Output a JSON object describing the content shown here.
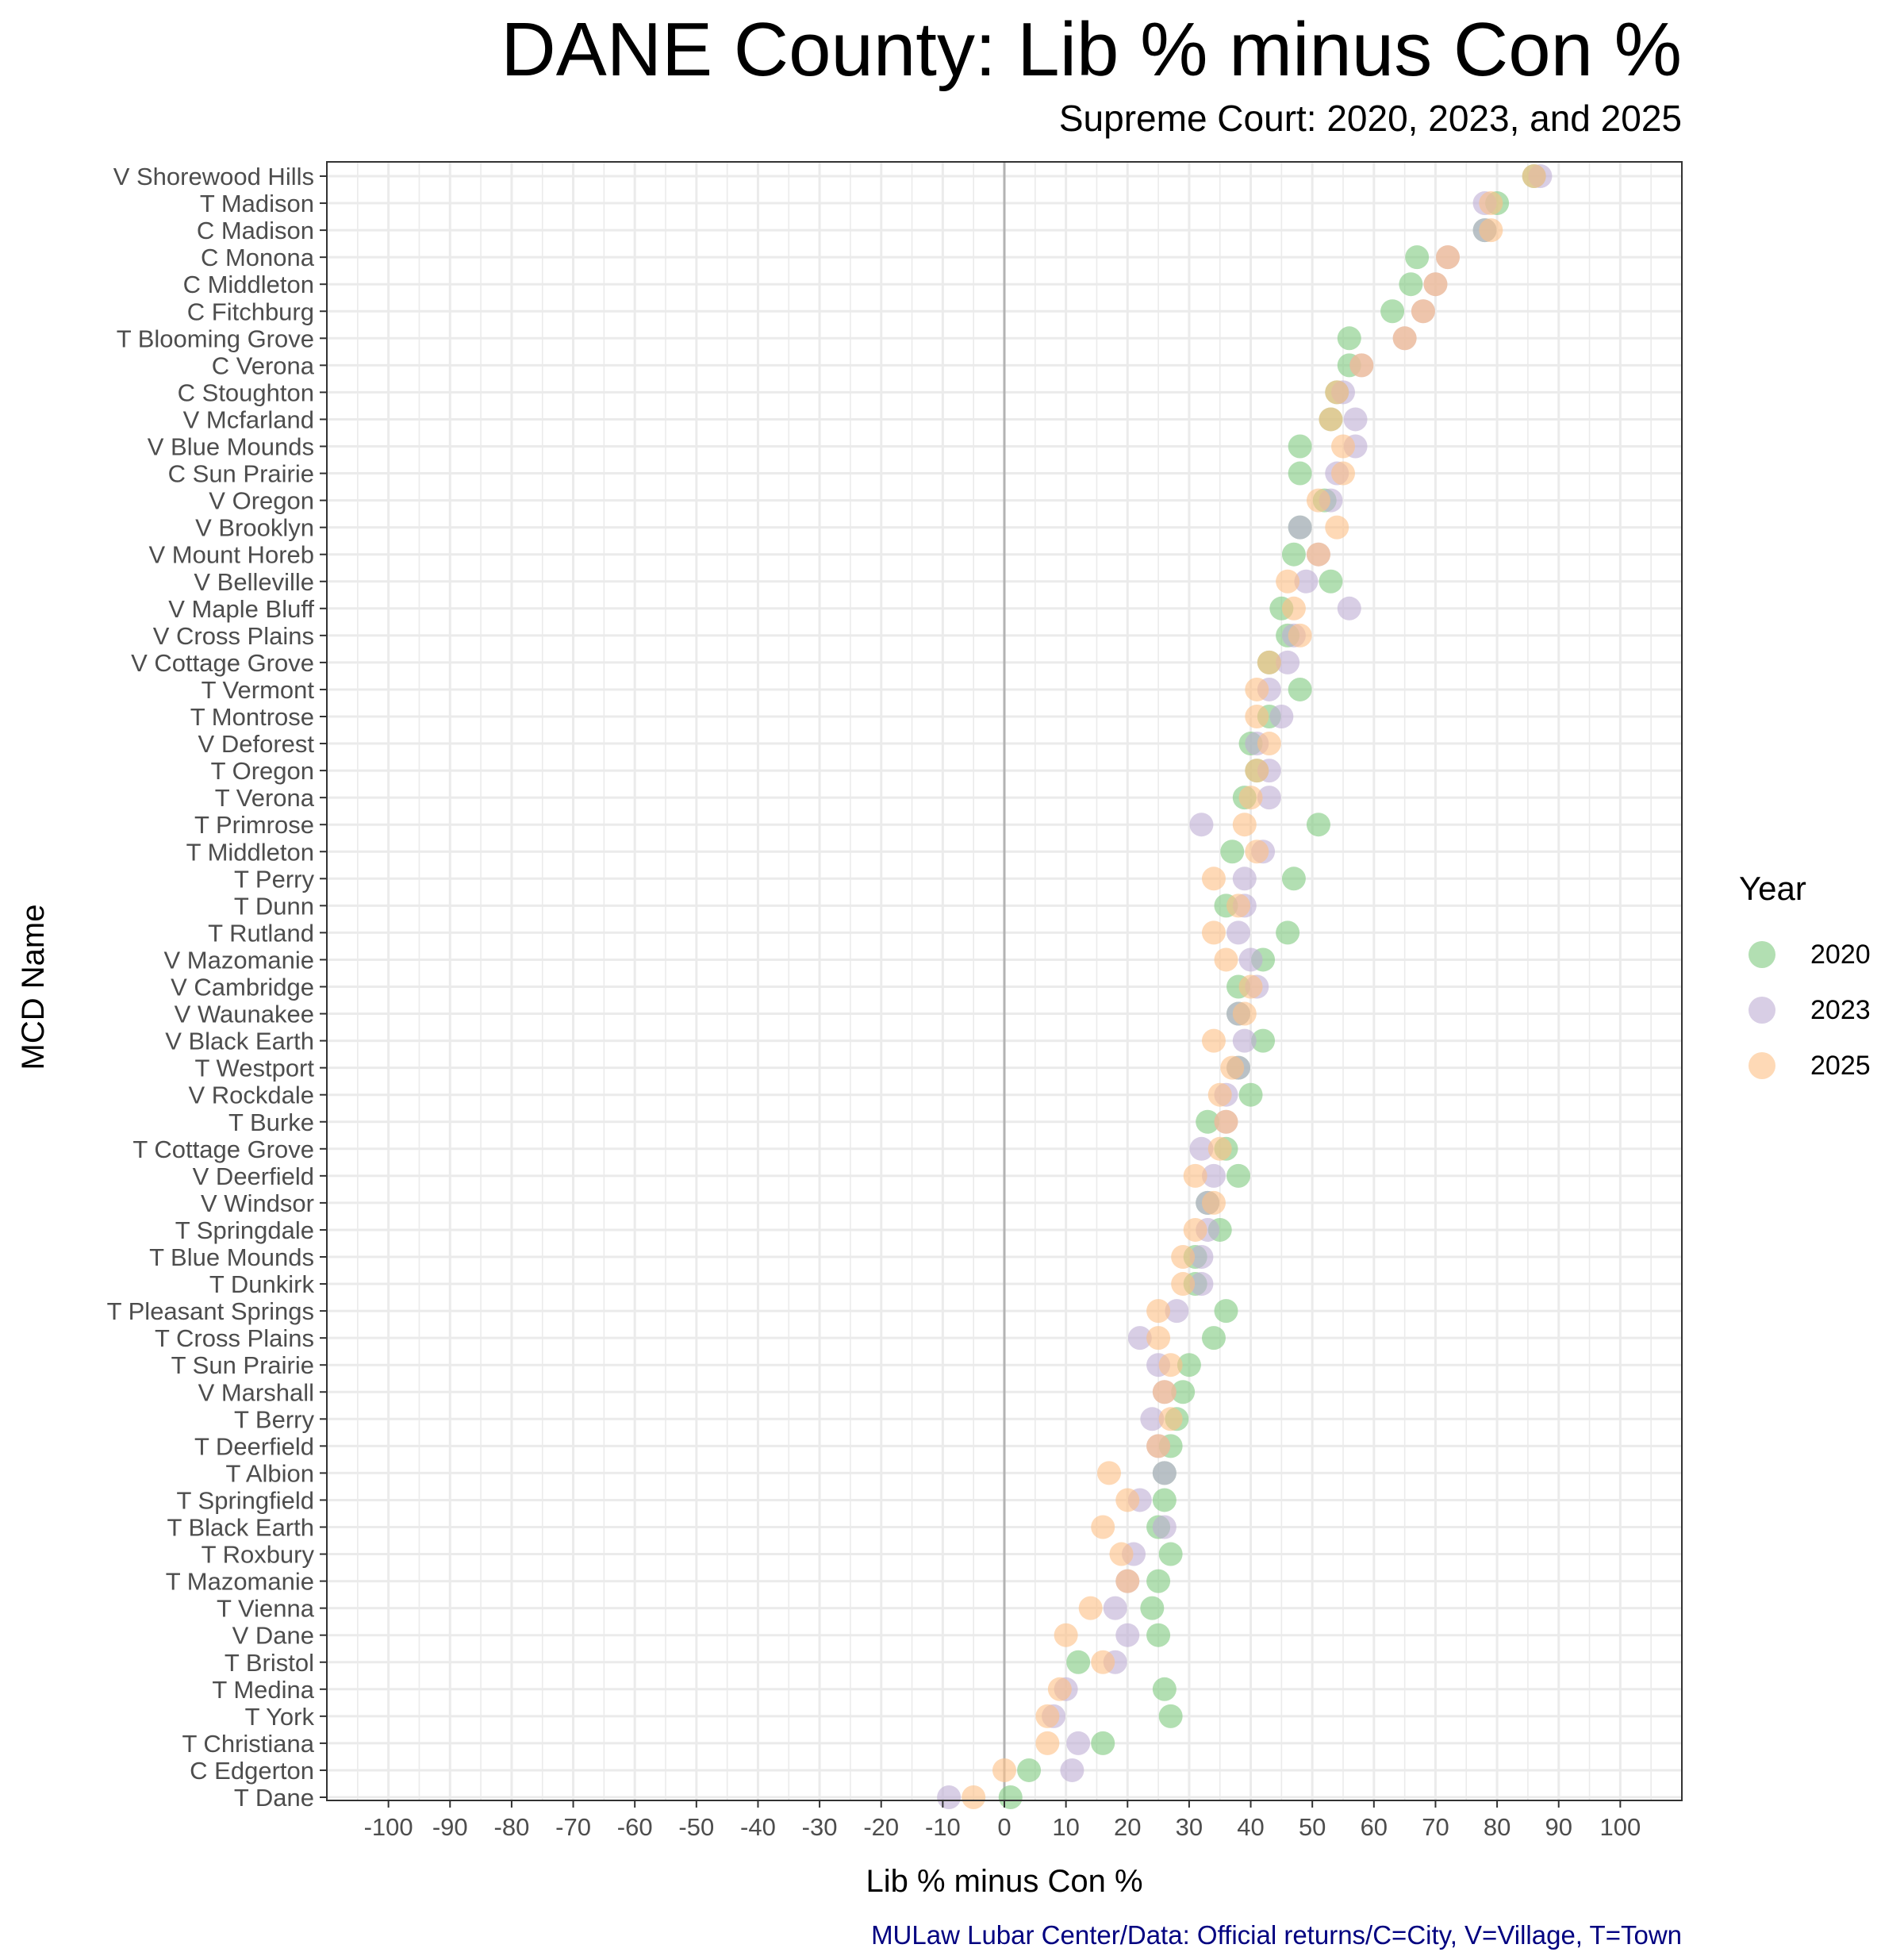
{
  "title": "DANE County: Lib % minus Con %",
  "subtitle": "Supreme Court: 2020, 2023, and 2025",
  "caption": "MULaw Lubar Center/Data: Official returns/C=City, V=Village, T=Town",
  "legend": {
    "title": "Year",
    "items": [
      {
        "label": "2020",
        "color": "#7fc97f"
      },
      {
        "label": "2023",
        "color": "#beaed4"
      },
      {
        "label": "2025",
        "color": "#fdc086"
      }
    ]
  },
  "chart_data": {
    "type": "scatter",
    "title": "DANE County: Lib % minus Con %",
    "subtitle": "Supreme Court: 2020, 2023, and 2025",
    "xlabel": "Lib % minus Con %",
    "ylabel": "MCD Name",
    "xlim": [
      -110,
      110
    ],
    "xticks": [
      "-100",
      "-90",
      "-80",
      "-70",
      "-60",
      "-50",
      "-40",
      "-30",
      "-20",
      "-10",
      "0",
      "10",
      "20",
      "30",
      "40",
      "50",
      "60",
      "70",
      "80",
      "90",
      "100"
    ],
    "grid": true,
    "legend_placement": "right",
    "categories": [
      "V Shorewood Hills",
      "T Madison",
      "C Madison",
      "C Monona",
      "C Middleton",
      "C Fitchburg",
      "T Blooming Grove",
      "C Verona",
      "C Stoughton",
      "V Mcfarland",
      "V Blue Mounds",
      "C Sun Prairie",
      "V Oregon",
      "V Brooklyn",
      "V Mount Horeb",
      "V Belleville",
      "V Maple Bluff",
      "V Cross Plains",
      "V Cottage Grove",
      "T Vermont",
      "T Montrose",
      "V Deforest",
      "T Oregon",
      "T Verona",
      "T Primrose",
      "T Middleton",
      "T Perry",
      "T Dunn",
      "T Rutland",
      "V Mazomanie",
      "V Cambridge",
      "V Waunakee",
      "V Black Earth",
      "T Westport",
      "V Rockdale",
      "T Burke",
      "T Cottage Grove",
      "V Deerfield",
      "V Windsor",
      "T Springdale",
      "T Blue Mounds",
      "T Dunkirk",
      "T Pleasant Springs",
      "T Cross Plains",
      "T Sun Prairie",
      "V Marshall",
      "T Berry",
      "T Deerfield",
      "T Albion",
      "T Springfield",
      "T Black Earth",
      "T Roxbury",
      "T Mazomanie",
      "T Vienna",
      "V Dane",
      "T Bristol",
      "T Medina",
      "T York",
      "T Christiana",
      "C Edgerton",
      "T Dane"
    ],
    "series": [
      {
        "name": "2020",
        "values": [
          86,
          80,
          78,
          67,
          66,
          63,
          56,
          56,
          54,
          53,
          48,
          48,
          52,
          48,
          47,
          53,
          45,
          46,
          43,
          48,
          43,
          40,
          41,
          39,
          51,
          37,
          47,
          36,
          46,
          42,
          38,
          38,
          42,
          38,
          40,
          33,
          36,
          38,
          33,
          35,
          31,
          31,
          36,
          34,
          30,
          29,
          28,
          27,
          26,
          26,
          25,
          27,
          25,
          24,
          25,
          12,
          26,
          27,
          16,
          4,
          1
        ]
      },
      {
        "name": "2023",
        "values": [
          87,
          78,
          78,
          72,
          70,
          68,
          65,
          58,
          55,
          57,
          57,
          54,
          53,
          48,
          51,
          49,
          56,
          47,
          46,
          43,
          45,
          41,
          43,
          43,
          32,
          42,
          39,
          39,
          38,
          40,
          41,
          38,
          39,
          38,
          36,
          36,
          32,
          34,
          33,
          33,
          32,
          32,
          28,
          22,
          25,
          26,
          24,
          25,
          26,
          22,
          26,
          21,
          20,
          18,
          20,
          18,
          10,
          8,
          12,
          11,
          -9
        ]
      },
      {
        "name": "2025",
        "values": [
          86,
          79,
          79,
          72,
          70,
          68,
          65,
          58,
          54,
          53,
          55,
          55,
          51,
          54,
          51,
          46,
          47,
          48,
          43,
          41,
          41,
          43,
          41,
          40,
          39,
          41,
          34,
          38,
          34,
          36,
          40,
          39,
          34,
          37,
          35,
          36,
          35,
          31,
          34,
          31,
          29,
          29,
          25,
          25,
          27,
          26,
          27,
          25,
          17,
          20,
          16,
          19,
          20,
          14,
          10,
          16,
          9,
          7,
          7,
          0,
          -5
        ]
      }
    ]
  }
}
